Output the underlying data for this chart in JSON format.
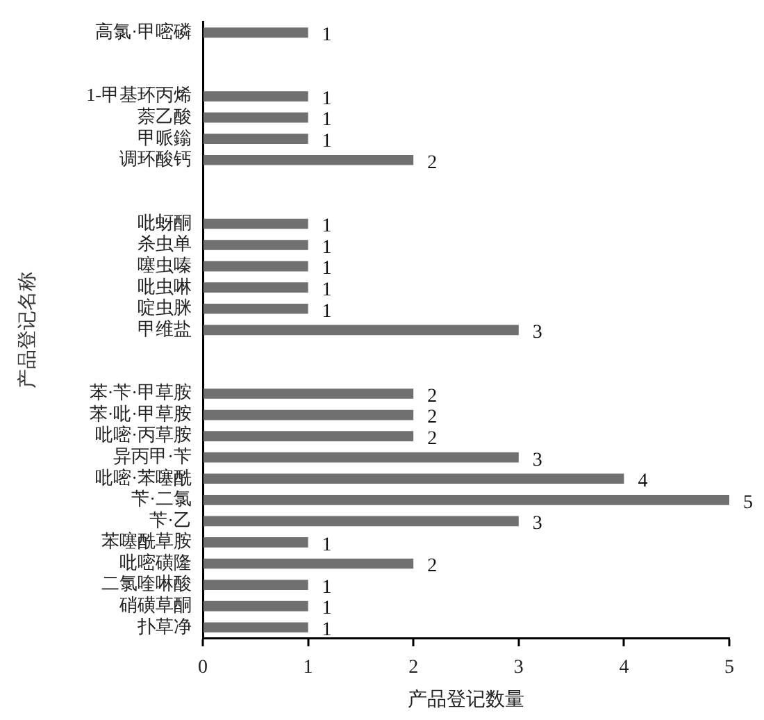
{
  "chart_data": {
    "type": "bar",
    "orientation": "horizontal",
    "categories": [
      "高氯·甲嘧磷",
      null,
      null,
      "1-甲基环丙烯",
      "萘乙酸",
      "甲哌鎓",
      "调环酸钙",
      null,
      null,
      "吡蚜酮",
      "杀虫单",
      "噻虫嗪",
      "吡虫啉",
      "啶虫脒",
      "甲维盐",
      null,
      null,
      "苯·苄·甲草胺",
      "苯·吡·甲草胺",
      "吡嘧·丙草胺",
      "异丙甲·苄",
      "吡嘧·苯噻酰",
      "苄·二氯",
      "苄·乙",
      "苯噻酰草胺",
      "吡嘧磺隆",
      "二氯喹啉酸",
      "硝磺草酮",
      "扑草净"
    ],
    "values": [
      1,
      null,
      null,
      1,
      1,
      1,
      2,
      null,
      null,
      1,
      1,
      1,
      1,
      1,
      3,
      null,
      null,
      2,
      2,
      2,
      3,
      4,
      5,
      3,
      1,
      2,
      1,
      1,
      1
    ],
    "color": "#707070",
    "xlabel": "产品登记数量",
    "ylabel": "产品登记名称",
    "xlim": [
      0,
      5
    ],
    "xticks": [
      0,
      1,
      2,
      3,
      4,
      5
    ],
    "data_labels": true
  }
}
